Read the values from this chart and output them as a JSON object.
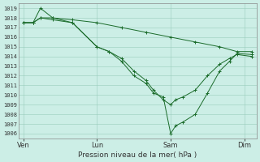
{
  "bg_color": "#cceee6",
  "grid_color": "#99ccbb",
  "line_color": "#1a6b2a",
  "xlabel": "Pression niveau de la mer( hPa )",
  "ylim": [
    1005.5,
    1019.5
  ],
  "yticks": [
    1006,
    1007,
    1008,
    1009,
    1010,
    1011,
    1012,
    1013,
    1014,
    1015,
    1016,
    1017,
    1018,
    1019
  ],
  "xtick_labels": [
    "Ven",
    "Lun",
    "Sam",
    "Dim"
  ],
  "xtick_positions": [
    0.0,
    3.0,
    6.0,
    9.0
  ],
  "xlim": [
    -0.2,
    9.5
  ],
  "series_flat_x": [
    0.0,
    0.4,
    0.7,
    1.2,
    2.0,
    3.0,
    4.0,
    5.0,
    6.0,
    7.0,
    8.0,
    8.7,
    9.3
  ],
  "series_flat_y": [
    1017.5,
    1017.5,
    1018.0,
    1018.0,
    1017.8,
    1017.5,
    1017.0,
    1016.5,
    1016.0,
    1015.5,
    1015.0,
    1014.5,
    1014.5
  ],
  "series_deep_x": [
    0.0,
    0.4,
    0.7,
    1.2,
    2.0,
    3.0,
    3.5,
    4.0,
    4.5,
    5.0,
    5.3,
    5.7,
    6.0,
    6.2,
    6.5,
    7.0,
    7.5,
    8.0,
    8.4,
    8.7,
    9.3
  ],
  "series_deep_y": [
    1017.5,
    1017.5,
    1019.0,
    1018.0,
    1017.5,
    1015.0,
    1014.5,
    1013.5,
    1012.0,
    1011.2,
    1010.2,
    1009.8,
    1006.0,
    1006.8,
    1007.2,
    1008.0,
    1010.2,
    1012.5,
    1013.5,
    1014.3,
    1014.2
  ],
  "series_mid_x": [
    0.0,
    0.4,
    0.7,
    1.2,
    2.0,
    3.0,
    3.5,
    4.0,
    4.5,
    5.0,
    5.3,
    5.7,
    6.0,
    6.2,
    6.5,
    7.0,
    7.5,
    8.0,
    8.4,
    8.7,
    9.3
  ],
  "series_mid_y": [
    1017.5,
    1017.5,
    1018.0,
    1017.8,
    1017.5,
    1015.0,
    1014.5,
    1013.8,
    1012.5,
    1011.5,
    1010.5,
    1009.5,
    1009.0,
    1009.5,
    1009.8,
    1010.5,
    1012.0,
    1013.2,
    1013.8,
    1014.2,
    1014.0
  ]
}
